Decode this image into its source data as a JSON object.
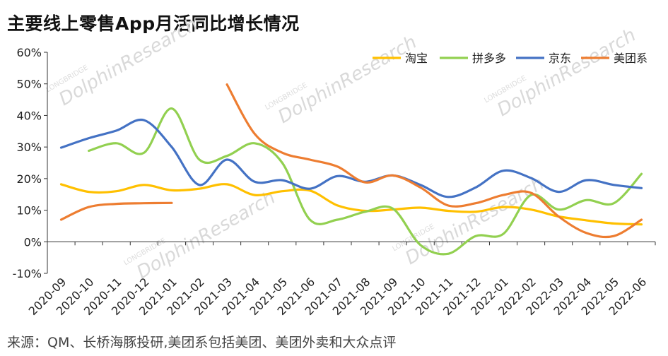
{
  "title": "主要线上零售App月活同比增长情况",
  "source": "来源：QM、长桥海豚投研,美团系包括美团、美团外卖和大众点评",
  "watermark": "DolphinResearch",
  "watermark_small": "LONGBRIDGE",
  "chart_data": {
    "type": "line",
    "title": "主要线上零售App月活同比增长情况",
    "xlabel": "",
    "ylabel": "",
    "ylim": [
      -10,
      60
    ],
    "yticks": [
      -10,
      0,
      10,
      20,
      30,
      40,
      50,
      60
    ],
    "ytick_labels": [
      "-10%",
      "0%",
      "10%",
      "20%",
      "30%",
      "40%",
      "50%",
      "60%"
    ],
    "grid": false,
    "legend_position": "top-right",
    "categories": [
      "2020-09",
      "2020-10",
      "2020-11",
      "2020-12",
      "2021-01",
      "2021-02",
      "2021-03",
      "2021-04",
      "2021-05",
      "2021-06",
      "2021-07",
      "2021-08",
      "2021-09",
      "2021-10",
      "2021-11",
      "2021-12",
      "2022-01",
      "2022-02",
      "2022-03",
      "2022-04",
      "2022-05",
      "2022-06"
    ],
    "series": [
      {
        "name": "淘宝",
        "color": "#FFC000",
        "values": [
          18.2,
          15.8,
          16,
          18,
          16.3,
          16.8,
          18.2,
          14.8,
          16,
          16.2,
          11.5,
          9.8,
          10.2,
          10.8,
          9.8,
          9.5,
          11,
          10.2,
          8,
          6.8,
          5.8,
          5.5
        ]
      },
      {
        "name": "拼多多",
        "color": "#92D050",
        "values": [
          null,
          28.8,
          31.2,
          28.2,
          42.2,
          26,
          27.2,
          31.2,
          25,
          7,
          7,
          9.5,
          10.5,
          -1,
          -3.8,
          1.8,
          2.5,
          14.8,
          10.2,
          13.2,
          12.2,
          21.5
        ]
      },
      {
        "name": "京东",
        "color": "#4472C4",
        "values": [
          29.8,
          32.8,
          35.2,
          38.5,
          30,
          18,
          26,
          19,
          19.5,
          16.8,
          20.8,
          19,
          21,
          18,
          14.2,
          17.2,
          22.5,
          20.2,
          15.8,
          19.5,
          18,
          17
        ]
      },
      {
        "name": "美团系",
        "color": "#ED7D31",
        "values": [
          7,
          11,
          12,
          12.2,
          12.3,
          null,
          49.8,
          34.2,
          28.2,
          26,
          23.8,
          18.8,
          21,
          17.2,
          11.5,
          12.2,
          14.8,
          15.5,
          8,
          2.8,
          1.8,
          7
        ]
      }
    ]
  }
}
